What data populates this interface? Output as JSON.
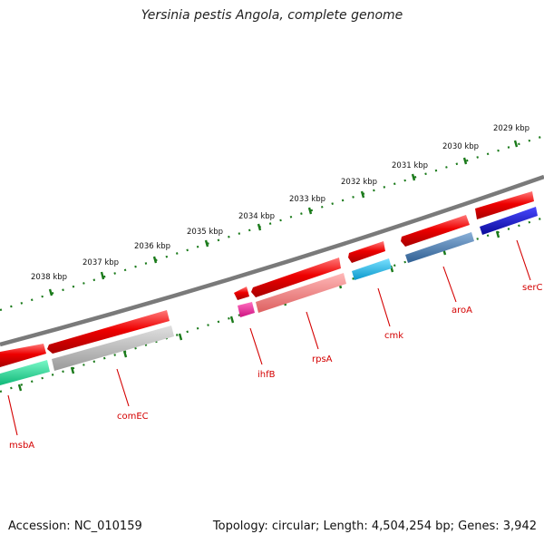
{
  "title": "Yersinia pestis Angola, complete genome",
  "footer": {
    "accession": "Accession: NC_010159",
    "summary": "Topology: circular; Length: 4,504,254 bp; Genes: 3,942"
  },
  "colors": {
    "backbone": "#7a7a7a",
    "tick": "#1a7a1a",
    "gene_label": "#d40000",
    "forward_feature": "#ee0000"
  },
  "scale": {
    "unit": "kbp",
    "labels": [
      "2029 kbp",
      "2030 kbp",
      "2031 kbp",
      "2032 kbp",
      "2033 kbp",
      "2034 kbp",
      "2035 kbp",
      "2036 kbp",
      "2037 kbp",
      "2038 kbp"
    ]
  },
  "genes": [
    {
      "name": "serC",
      "color": "#1a1acc"
    },
    {
      "name": "aroA",
      "color": "#4a7ab0"
    },
    {
      "name": "cmk",
      "color": "#18b4e8"
    },
    {
      "name": "rpsA",
      "color": "#ee8080"
    },
    {
      "name": "ihfB",
      "color": "#ee2299"
    },
    {
      "name": "comEC",
      "color": "#b8b8b8"
    },
    {
      "name": "msbA",
      "color": "#22dd99"
    }
  ]
}
